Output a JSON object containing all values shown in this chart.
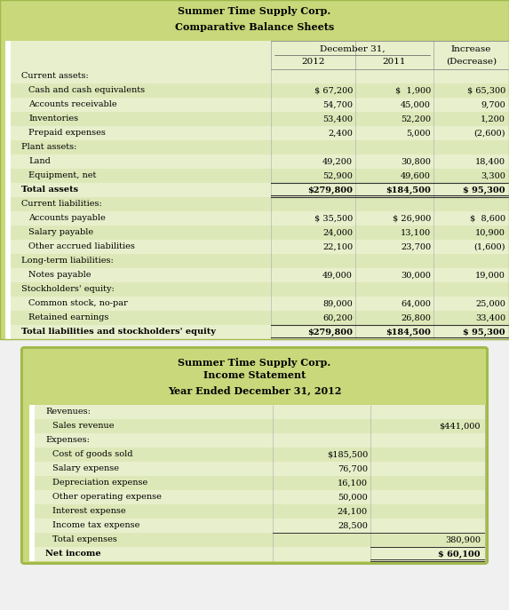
{
  "title1_line1": "Summer Time Supply Corp.",
  "title1_line2": "Comparative Balance Sheets",
  "title2_line1": "Summer Time Supply Corp.",
  "title2_line2": "Income Statement",
  "title2_line3": "Year Ended December 31, 2012",
  "bg_green": "#c8d87a",
  "bg_light": "#e8efcc",
  "bg_mid": "#dde8b8",
  "white": "#ffffff",
  "text_dark": "#1a1a1a",
  "border_green": "#a0b84a",
  "balance_sheet_rows": [
    {
      "label": "Current assets:",
      "indent": 0,
      "v2012": "",
      "v2011": "",
      "vchg": "",
      "bold": false,
      "total": false,
      "section": true
    },
    {
      "label": "Cash and cash equivalents",
      "indent": 1,
      "v2012": "$ 67,200",
      "v2011": "$  1,900",
      "vchg": "$ 65,300",
      "bold": false,
      "total": false,
      "section": false
    },
    {
      "label": "Accounts receivable",
      "indent": 1,
      "v2012": "54,700",
      "v2011": "45,000",
      "vchg": "9,700",
      "bold": false,
      "total": false,
      "section": false
    },
    {
      "label": "Inventories",
      "indent": 1,
      "v2012": "53,400",
      "v2011": "52,200",
      "vchg": "1,200",
      "bold": false,
      "total": false,
      "section": false
    },
    {
      "label": "Prepaid expenses",
      "indent": 1,
      "v2012": "2,400",
      "v2011": "5,000",
      "vchg": "(2,600)",
      "bold": false,
      "total": false,
      "section": false
    },
    {
      "label": "Plant assets:",
      "indent": 0,
      "v2012": "",
      "v2011": "",
      "vchg": "",
      "bold": false,
      "total": false,
      "section": true
    },
    {
      "label": "Land",
      "indent": 1,
      "v2012": "49,200",
      "v2011": "30,800",
      "vchg": "18,400",
      "bold": false,
      "total": false,
      "section": false
    },
    {
      "label": "Equipment, net",
      "indent": 1,
      "v2012": "52,900",
      "v2011": "49,600",
      "vchg": "3,300",
      "bold": false,
      "total": false,
      "section": false
    },
    {
      "label": "Total assets",
      "indent": 0,
      "v2012": "$279,800",
      "v2011": "$184,500",
      "vchg": "$ 95,300",
      "bold": true,
      "total": true,
      "section": false
    },
    {
      "label": "Current liabilities:",
      "indent": 0,
      "v2012": "",
      "v2011": "",
      "vchg": "",
      "bold": false,
      "total": false,
      "section": true
    },
    {
      "label": "Accounts payable",
      "indent": 1,
      "v2012": "$ 35,500",
      "v2011": "$ 26,900",
      "vchg": "$  8,600",
      "bold": false,
      "total": false,
      "section": false
    },
    {
      "label": "Salary payable",
      "indent": 1,
      "v2012": "24,000",
      "v2011": "13,100",
      "vchg": "10,900",
      "bold": false,
      "total": false,
      "section": false
    },
    {
      "label": "Other accrued liabilities",
      "indent": 1,
      "v2012": "22,100",
      "v2011": "23,700",
      "vchg": "(1,600)",
      "bold": false,
      "total": false,
      "section": false
    },
    {
      "label": "Long-term liabilities:",
      "indent": 0,
      "v2012": "",
      "v2011": "",
      "vchg": "",
      "bold": false,
      "total": false,
      "section": true
    },
    {
      "label": "Notes payable",
      "indent": 1,
      "v2012": "49,000",
      "v2011": "30,000",
      "vchg": "19,000",
      "bold": false,
      "total": false,
      "section": false
    },
    {
      "label": "Stockholders' equity:",
      "indent": 0,
      "v2012": "",
      "v2011": "",
      "vchg": "",
      "bold": false,
      "total": false,
      "section": true
    },
    {
      "label": "Common stock, no-par",
      "indent": 1,
      "v2012": "89,000",
      "v2011": "64,000",
      "vchg": "25,000",
      "bold": false,
      "total": false,
      "section": false
    },
    {
      "label": "Retained earnings",
      "indent": 1,
      "v2012": "60,200",
      "v2011": "26,800",
      "vchg": "33,400",
      "bold": false,
      "total": false,
      "section": false
    },
    {
      "label": "Total liabilities and stockholders' equity",
      "indent": 0,
      "v2012": "$279,800",
      "v2011": "$184,500",
      "vchg": "$ 95,300",
      "bold": true,
      "total": true,
      "section": false
    }
  ],
  "income_rows": [
    {
      "label": "Revenues:",
      "indent": 0,
      "c1": "",
      "c2": "",
      "bold": false,
      "section": true,
      "total": false
    },
    {
      "label": "Sales revenue",
      "indent": 1,
      "c1": "",
      "c2": "$441,000",
      "bold": false,
      "section": false,
      "total": false
    },
    {
      "label": "Expenses:",
      "indent": 0,
      "c1": "",
      "c2": "",
      "bold": false,
      "section": true,
      "total": false
    },
    {
      "label": "Cost of goods sold",
      "indent": 1,
      "c1": "$185,500",
      "c2": "",
      "bold": false,
      "section": false,
      "total": false
    },
    {
      "label": "Salary expense",
      "indent": 1,
      "c1": "76,700",
      "c2": "",
      "bold": false,
      "section": false,
      "total": false
    },
    {
      "label": "Depreciation expense",
      "indent": 1,
      "c1": "16,100",
      "c2": "",
      "bold": false,
      "section": false,
      "total": false
    },
    {
      "label": "Other operating expense",
      "indent": 1,
      "c1": "50,000",
      "c2": "",
      "bold": false,
      "section": false,
      "total": false
    },
    {
      "label": "Interest expense",
      "indent": 1,
      "c1": "24,100",
      "c2": "",
      "bold": false,
      "section": false,
      "total": false
    },
    {
      "label": "Income tax expense",
      "indent": 1,
      "c1": "28,500",
      "c2": "",
      "bold": false,
      "section": false,
      "total": false
    },
    {
      "label": "Total expenses",
      "indent": 1,
      "c1": "",
      "c2": "380,900",
      "bold": false,
      "section": false,
      "total": true
    },
    {
      "label": "Net income",
      "indent": 0,
      "c1": "",
      "c2": "$ 60,100",
      "bold": true,
      "section": false,
      "total": true
    }
  ]
}
